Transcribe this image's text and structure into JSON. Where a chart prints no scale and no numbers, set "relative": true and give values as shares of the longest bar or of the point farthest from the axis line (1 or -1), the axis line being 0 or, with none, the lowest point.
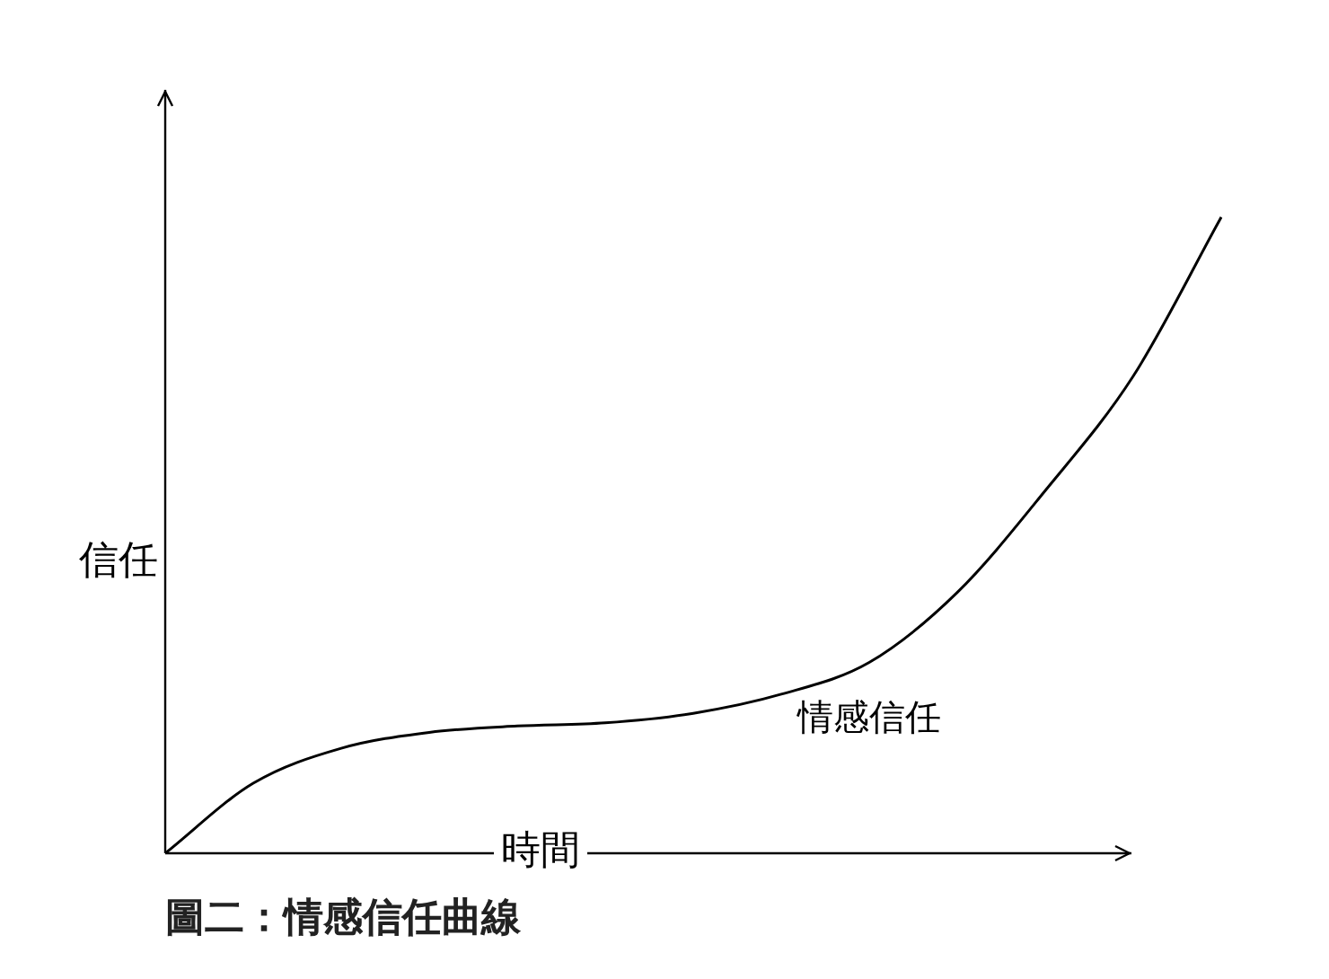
{
  "chart_data": {
    "type": "line",
    "relative": true,
    "xlabel": "時間",
    "ylabel": "信任",
    "categories": [
      null,
      null,
      null,
      null,
      null,
      null,
      null,
      null,
      null,
      null,
      null,
      null,
      null
    ],
    "series": [
      {
        "name": "情感信任",
        "color": "#000000",
        "values": [
          0,
          0.11,
          0.165,
          0.19,
          0.2,
          0.205,
          0.22,
          0.25,
          0.3,
          0.41,
          0.57,
          0.75,
          1
        ]
      }
    ],
    "annotations": [
      "圖二：情感信任曲線"
    ],
    "legend": false,
    "marker": "none",
    "line_style": "solid"
  }
}
